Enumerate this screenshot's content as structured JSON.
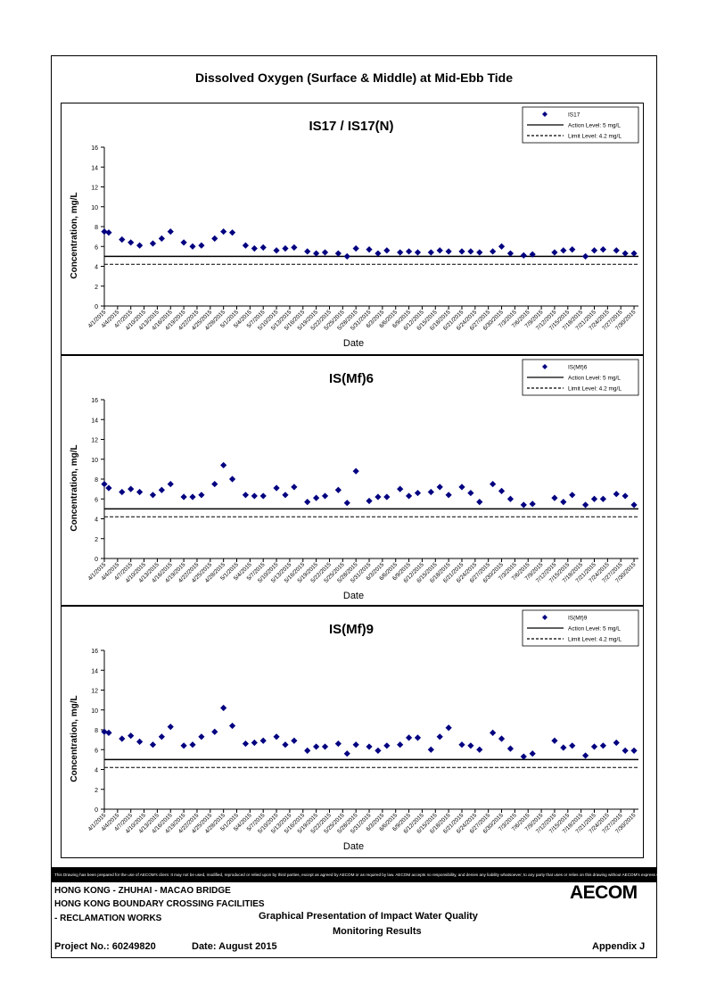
{
  "page": {
    "main_title": "Dissolved Oxygen (Surface & Middle) at Mid-Ebb Tide",
    "disclaimer": "This Drawing has been prepared for the use of AECOM's client. It may not be used, modified, reproduced or relied upon by third parties, except as agreed by AECOM or as required by law. AECOM accepts no responsibility, and denies any liability whatsoever, to any party that uses or relies on this drawing without AECOM's express written consent.",
    "footer": {
      "line1": "HONG KONG - ZHUHAI - MACAO BRIDGE",
      "line2": "HONG KONG BOUNDARY CROSSING FACILITIES",
      "line3": "- RECLAMATION WORKS",
      "presentation_line1": "Graphical Presentation of Impact Water Quality",
      "presentation_line2": "Monitoring Results",
      "project": "Project No.: 60249820",
      "date": "Date: August 2015",
      "appendix": "Appendix J",
      "logo": "AECOM"
    }
  },
  "chart_data": [
    {
      "type": "scatter",
      "title": "IS17 / IS17(N)",
      "xlabel": "Date",
      "ylabel": "Concentration, mg/L",
      "ylim": [
        0,
        16
      ],
      "yticks": [
        0,
        2,
        4,
        6,
        8,
        10,
        12,
        14,
        16
      ],
      "xlim": [
        "4/1/2015",
        "7/31/2015"
      ],
      "xticks": [
        "4/1/2015",
        "4/4/2015",
        "4/7/2015",
        "4/10/2015",
        "4/13/2015",
        "4/16/2015",
        "4/19/2015",
        "4/22/2015",
        "4/25/2015",
        "4/28/2015",
        "5/1/2015",
        "5/4/2015",
        "5/7/2015",
        "5/10/2015",
        "5/13/2015",
        "5/16/2015",
        "5/19/2015",
        "5/22/2015",
        "5/25/2015",
        "5/28/2015",
        "5/31/2015",
        "6/3/2015",
        "6/6/2015",
        "6/9/2015",
        "6/12/2015",
        "6/15/2015",
        "6/18/2015",
        "6/21/2015",
        "6/24/2015",
        "6/27/2015",
        "6/30/2015",
        "7/3/2015",
        "7/6/2015",
        "7/9/2015",
        "7/12/2015",
        "7/15/2015",
        "7/18/2015",
        "7/21/2015",
        "7/24/2015",
        "7/27/2015",
        "7/30/2015"
      ],
      "legend_position": "top-right",
      "series": [
        {
          "name": "IS17",
          "marker": "diamond",
          "color": "#000080",
          "points": [
            [
              "4/1/2015",
              7.5
            ],
            [
              "4/2/2015",
              7.4
            ],
            [
              "4/5/2015",
              6.7
            ],
            [
              "4/7/2015",
              6.4
            ],
            [
              "4/9/2015",
              6.1
            ],
            [
              "4/12/2015",
              6.3
            ],
            [
              "4/14/2015",
              6.8
            ],
            [
              "4/16/2015",
              7.5
            ],
            [
              "4/19/2015",
              6.4
            ],
            [
              "4/21/2015",
              6.0
            ],
            [
              "4/23/2015",
              6.1
            ],
            [
              "4/26/2015",
              6.8
            ],
            [
              "4/28/2015",
              7.5
            ],
            [
              "4/30/2015",
              7.4
            ],
            [
              "5/3/2015",
              6.1
            ],
            [
              "5/5/2015",
              5.8
            ],
            [
              "5/7/2015",
              5.9
            ],
            [
              "5/10/2015",
              5.6
            ],
            [
              "5/12/2015",
              5.8
            ],
            [
              "5/14/2015",
              5.9
            ],
            [
              "5/17/2015",
              5.5
            ],
            [
              "5/19/2015",
              5.3
            ],
            [
              "5/21/2015",
              5.4
            ],
            [
              "5/24/2015",
              5.3
            ],
            [
              "5/26/2015",
              5.0
            ],
            [
              "5/28/2015",
              5.8
            ],
            [
              "5/31/2015",
              5.7
            ],
            [
              "6/2/2015",
              5.3
            ],
            [
              "6/4/2015",
              5.6
            ],
            [
              "6/7/2015",
              5.4
            ],
            [
              "6/9/2015",
              5.5
            ],
            [
              "6/11/2015",
              5.4
            ],
            [
              "6/14/2015",
              5.4
            ],
            [
              "6/16/2015",
              5.6
            ],
            [
              "6/18/2015",
              5.5
            ],
            [
              "6/21/2015",
              5.5
            ],
            [
              "6/23/2015",
              5.5
            ],
            [
              "6/25/2015",
              5.4
            ],
            [
              "6/28/2015",
              5.5
            ],
            [
              "6/30/2015",
              6.0
            ],
            [
              "7/2/2015",
              5.3
            ],
            [
              "7/5/2015",
              5.1
            ],
            [
              "7/7/2015",
              5.2
            ],
            [
              "7/12/2015",
              5.4
            ],
            [
              "7/14/2015",
              5.6
            ],
            [
              "7/16/2015",
              5.7
            ],
            [
              "7/19/2015",
              5.0
            ],
            [
              "7/21/2015",
              5.6
            ],
            [
              "7/23/2015",
              5.7
            ],
            [
              "7/26/2015",
              5.6
            ],
            [
              "7/28/2015",
              5.3
            ],
            [
              "7/30/2015",
              5.3
            ]
          ]
        },
        {
          "name": "Action Level: 5 mg/L",
          "style": "solid",
          "value": 5
        },
        {
          "name": "Limit Level: 4.2 mg/L",
          "style": "dashed",
          "value": 4.2
        }
      ]
    },
    {
      "type": "scatter",
      "title": "IS(Mf)6",
      "xlabel": "Date",
      "ylabel": "Concentration, mg/L",
      "ylim": [
        0,
        16
      ],
      "yticks": [
        0,
        2,
        4,
        6,
        8,
        10,
        12,
        14,
        16
      ],
      "xlim": [
        "4/1/2015",
        "7/31/2015"
      ],
      "xticks": [
        "4/1/2015",
        "4/4/2015",
        "4/7/2015",
        "4/10/2015",
        "4/13/2015",
        "4/16/2015",
        "4/19/2015",
        "4/22/2015",
        "4/25/2015",
        "4/28/2015",
        "5/1/2015",
        "5/4/2015",
        "5/7/2015",
        "5/10/2015",
        "5/13/2015",
        "5/16/2015",
        "5/19/2015",
        "5/22/2015",
        "5/25/2015",
        "5/28/2015",
        "5/31/2015",
        "6/3/2015",
        "6/6/2015",
        "6/9/2015",
        "6/12/2015",
        "6/15/2015",
        "6/18/2015",
        "6/21/2015",
        "6/24/2015",
        "6/27/2015",
        "6/30/2015",
        "7/3/2015",
        "7/6/2015",
        "7/9/2015",
        "7/12/2015",
        "7/15/2015",
        "7/18/2015",
        "7/21/2015",
        "7/24/2015",
        "7/27/2015",
        "7/30/2015"
      ],
      "legend_position": "top-right",
      "series": [
        {
          "name": "IS(Mf)6",
          "marker": "diamond",
          "color": "#000080",
          "points": [
            [
              "4/1/2015",
              7.5
            ],
            [
              "4/2/2015",
              7.1
            ],
            [
              "4/5/2015",
              6.7
            ],
            [
              "4/7/2015",
              7.0
            ],
            [
              "4/9/2015",
              6.7
            ],
            [
              "4/12/2015",
              6.4
            ],
            [
              "4/14/2015",
              6.9
            ],
            [
              "4/16/2015",
              7.5
            ],
            [
              "4/19/2015",
              6.2
            ],
            [
              "4/21/2015",
              6.2
            ],
            [
              "4/23/2015",
              6.4
            ],
            [
              "4/26/2015",
              7.5
            ],
            [
              "4/28/2015",
              9.4
            ],
            [
              "4/30/2015",
              8.0
            ],
            [
              "5/3/2015",
              6.4
            ],
            [
              "5/5/2015",
              6.3
            ],
            [
              "5/7/2015",
              6.3
            ],
            [
              "5/10/2015",
              7.1
            ],
            [
              "5/12/2015",
              6.4
            ],
            [
              "5/14/2015",
              7.2
            ],
            [
              "5/17/2015",
              5.7
            ],
            [
              "5/19/2015",
              6.1
            ],
            [
              "5/21/2015",
              6.3
            ],
            [
              "5/24/2015",
              6.9
            ],
            [
              "5/26/2015",
              5.6
            ],
            [
              "5/28/2015",
              8.8
            ],
            [
              "5/31/2015",
              5.8
            ],
            [
              "6/2/2015",
              6.2
            ],
            [
              "6/4/2015",
              6.2
            ],
            [
              "6/7/2015",
              7.0
            ],
            [
              "6/9/2015",
              6.3
            ],
            [
              "6/11/2015",
              6.6
            ],
            [
              "6/14/2015",
              6.7
            ],
            [
              "6/16/2015",
              7.2
            ],
            [
              "6/18/2015",
              6.4
            ],
            [
              "6/21/2015",
              7.2
            ],
            [
              "6/23/2015",
              6.6
            ],
            [
              "6/25/2015",
              5.7
            ],
            [
              "6/28/2015",
              7.5
            ],
            [
              "6/30/2015",
              6.8
            ],
            [
              "7/2/2015",
              6.0
            ],
            [
              "7/5/2015",
              5.4
            ],
            [
              "7/7/2015",
              5.5
            ],
            [
              "7/12/2015",
              6.1
            ],
            [
              "7/14/2015",
              5.7
            ],
            [
              "7/16/2015",
              6.4
            ],
            [
              "7/19/2015",
              5.4
            ],
            [
              "7/21/2015",
              6.0
            ],
            [
              "7/23/2015",
              6.0
            ],
            [
              "7/26/2015",
              6.5
            ],
            [
              "7/28/2015",
              6.3
            ],
            [
              "7/30/2015",
              5.4
            ]
          ]
        },
        {
          "name": "Action Level: 5 mg/L",
          "style": "solid",
          "value": 5
        },
        {
          "name": "Limit Level: 4.2 mg/L",
          "style": "dashed",
          "value": 4.2
        }
      ]
    },
    {
      "type": "scatter",
      "title": "IS(Mf)9",
      "xlabel": "Date",
      "ylabel": "Concentration, mg/L",
      "ylim": [
        0,
        16
      ],
      "yticks": [
        0,
        2,
        4,
        6,
        8,
        10,
        12,
        14,
        16
      ],
      "xlim": [
        "4/1/2015",
        "7/31/2015"
      ],
      "xticks": [
        "4/1/2015",
        "4/4/2015",
        "4/7/2015",
        "4/10/2015",
        "4/13/2015",
        "4/16/2015",
        "4/19/2015",
        "4/22/2015",
        "4/25/2015",
        "4/28/2015",
        "5/1/2015",
        "5/4/2015",
        "5/7/2015",
        "5/10/2015",
        "5/13/2015",
        "5/16/2015",
        "5/19/2015",
        "5/22/2015",
        "5/25/2015",
        "5/28/2015",
        "5/31/2015",
        "6/3/2015",
        "6/6/2015",
        "6/9/2015",
        "6/12/2015",
        "6/15/2015",
        "6/18/2015",
        "6/21/2015",
        "6/24/2015",
        "6/27/2015",
        "6/30/2015",
        "7/3/2015",
        "7/6/2015",
        "7/9/2015",
        "7/12/2015",
        "7/15/2015",
        "7/18/2015",
        "7/21/2015",
        "7/24/2015",
        "7/27/2015",
        "7/30/2015"
      ],
      "legend_position": "top-right",
      "series": [
        {
          "name": "IS(Mf)9",
          "marker": "diamond",
          "color": "#000080",
          "points": [
            [
              "4/1/2015",
              7.8
            ],
            [
              "4/2/2015",
              7.7
            ],
            [
              "4/5/2015",
              7.1
            ],
            [
              "4/7/2015",
              7.4
            ],
            [
              "4/9/2015",
              6.8
            ],
            [
              "4/12/2015",
              6.5
            ],
            [
              "4/14/2015",
              7.3
            ],
            [
              "4/16/2015",
              8.3
            ],
            [
              "4/19/2015",
              6.4
            ],
            [
              "4/21/2015",
              6.5
            ],
            [
              "4/23/2015",
              7.3
            ],
            [
              "4/26/2015",
              7.8
            ],
            [
              "4/28/2015",
              10.2
            ],
            [
              "4/30/2015",
              8.4
            ],
            [
              "5/3/2015",
              6.6
            ],
            [
              "5/5/2015",
              6.7
            ],
            [
              "5/7/2015",
              6.9
            ],
            [
              "5/10/2015",
              7.3
            ],
            [
              "5/12/2015",
              6.5
            ],
            [
              "5/14/2015",
              6.9
            ],
            [
              "5/17/2015",
              5.9
            ],
            [
              "5/19/2015",
              6.3
            ],
            [
              "5/21/2015",
              6.3
            ],
            [
              "5/24/2015",
              6.6
            ],
            [
              "5/26/2015",
              5.6
            ],
            [
              "5/28/2015",
              6.5
            ],
            [
              "5/31/2015",
              6.3
            ],
            [
              "6/2/2015",
              5.9
            ],
            [
              "6/4/2015",
              6.4
            ],
            [
              "6/7/2015",
              6.5
            ],
            [
              "6/9/2015",
              7.2
            ],
            [
              "6/11/2015",
              7.2
            ],
            [
              "6/14/2015",
              6.0
            ],
            [
              "6/16/2015",
              7.3
            ],
            [
              "6/18/2015",
              8.2
            ],
            [
              "6/21/2015",
              6.5
            ],
            [
              "6/23/2015",
              6.4
            ],
            [
              "6/25/2015",
              6.0
            ],
            [
              "6/28/2015",
              7.7
            ],
            [
              "6/30/2015",
              7.1
            ],
            [
              "7/2/2015",
              6.1
            ],
            [
              "7/5/2015",
              5.3
            ],
            [
              "7/7/2015",
              5.6
            ],
            [
              "7/12/2015",
              6.9
            ],
            [
              "7/14/2015",
              6.2
            ],
            [
              "7/16/2015",
              6.4
            ],
            [
              "7/19/2015",
              5.4
            ],
            [
              "7/21/2015",
              6.3
            ],
            [
              "7/23/2015",
              6.4
            ],
            [
              "7/26/2015",
              6.7
            ],
            [
              "7/28/2015",
              5.9
            ],
            [
              "7/30/2015",
              5.9
            ]
          ]
        },
        {
          "name": "Action Level: 5 mg/L",
          "style": "solid",
          "value": 5
        },
        {
          "name": "Limit Level: 4.2 mg/L",
          "style": "dashed",
          "value": 4.2
        }
      ]
    }
  ]
}
